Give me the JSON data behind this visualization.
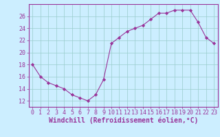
{
  "x": [
    0,
    1,
    2,
    3,
    4,
    5,
    6,
    7,
    8,
    9,
    10,
    11,
    12,
    13,
    14,
    15,
    16,
    17,
    18,
    19,
    20,
    21,
    22,
    23
  ],
  "y": [
    18,
    16,
    15,
    14.5,
    14,
    13,
    12.5,
    12,
    13,
    15.5,
    21.5,
    22.5,
    23.5,
    24,
    24.5,
    25.5,
    26.5,
    26.5,
    27,
    27,
    27,
    25,
    22.5,
    21.5
  ],
  "line_color": "#993399",
  "marker_color": "#993399",
  "bg_color": "#cceeff",
  "grid_color": "#99cccc",
  "xlabel": "Windchill (Refroidissement éolien,°C)",
  "ylim": [
    11,
    28
  ],
  "xlim": [
    -0.5,
    23.5
  ],
  "yticks": [
    12,
    14,
    16,
    18,
    20,
    22,
    24,
    26
  ],
  "xticks": [
    0,
    1,
    2,
    3,
    4,
    5,
    6,
    7,
    8,
    9,
    10,
    11,
    12,
    13,
    14,
    15,
    16,
    17,
    18,
    19,
    20,
    21,
    22,
    23
  ],
  "tick_fontsize": 6,
  "xlabel_fontsize": 7,
  "tick_color": "#993399",
  "spine_color": "#993399"
}
